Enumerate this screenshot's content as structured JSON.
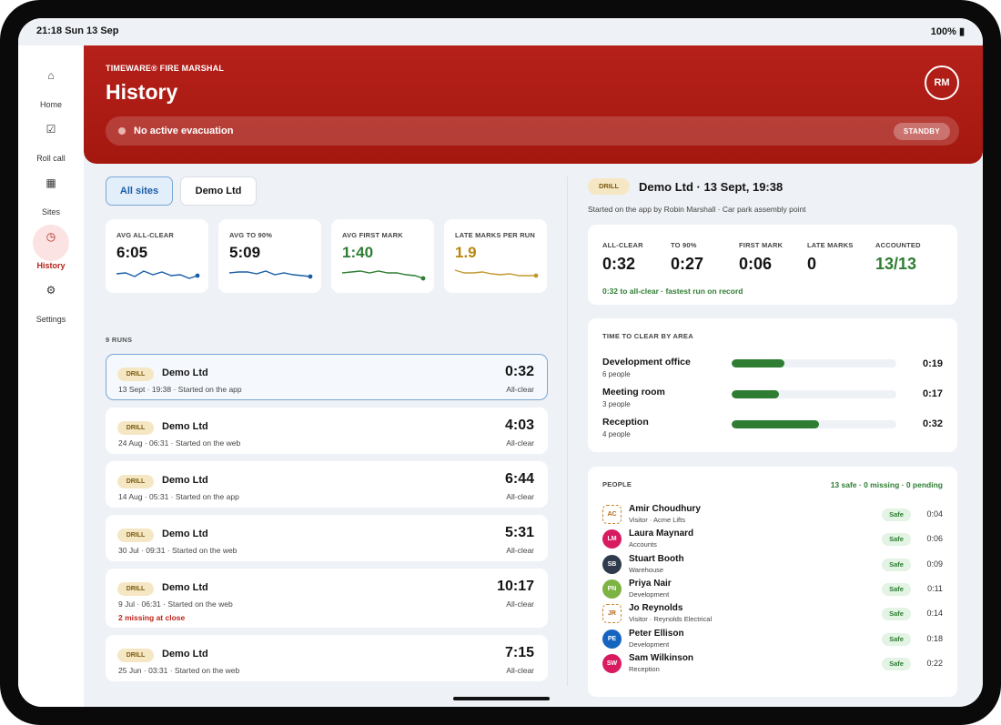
{
  "status": {
    "time": "21:18  Sun 13 Sep",
    "battery": "100% ▮"
  },
  "nav": [
    {
      "label": "Home",
      "icon": "home-icon",
      "glyph": "⌂"
    },
    {
      "label": "Roll call",
      "icon": "checklist-icon",
      "glyph": "☑"
    },
    {
      "label": "Sites",
      "icon": "building-icon",
      "glyph": "▦"
    },
    {
      "label": "History",
      "icon": "clock-icon",
      "glyph": "◷"
    },
    {
      "label": "Settings",
      "icon": "gear-icon",
      "glyph": "⚙"
    }
  ],
  "header": {
    "brand": "TIMEWARE® FIRE MARSHAL",
    "title": "History",
    "avatar": "RM",
    "evac_text": "No active evacuation",
    "evac_badge": "STANDBY"
  },
  "filters": {
    "all": "All sites",
    "site": "Demo Ltd"
  },
  "stats": [
    {
      "label": "AVG ALL-CLEAR",
      "value": "6:05",
      "color": "#141414",
      "spark": "#1a5ea8"
    },
    {
      "label": "AVG TO 90%",
      "value": "5:09",
      "color": "#141414",
      "spark": "#1a5ea8"
    },
    {
      "label": "AVG FIRST MARK",
      "value": "1:40",
      "color": "#2e7d32",
      "spark": "#2e7d32"
    },
    {
      "label": "LATE MARKS PER RUN",
      "value": "1.9",
      "color": "#b8860b",
      "spark": "#c09a2e"
    }
  ],
  "runs_count": "9 RUNS",
  "runs": [
    {
      "badge": "DRILL",
      "name": "Demo Ltd",
      "sub": "13 Sept · 19:38 · Started on the app",
      "time": "0:32",
      "time_label": "All-clear",
      "warn": ""
    },
    {
      "badge": "DRILL",
      "name": "Demo Ltd",
      "sub": "24 Aug · 06:31 · Started on the web",
      "time": "4:03",
      "time_label": "All-clear",
      "warn": ""
    },
    {
      "badge": "DRILL",
      "name": "Demo Ltd",
      "sub": "14 Aug · 05:31 · Started on the app",
      "time": "6:44",
      "time_label": "All-clear",
      "warn": ""
    },
    {
      "badge": "DRILL",
      "name": "Demo Ltd",
      "sub": "30 Jul · 09:31 · Started on the web",
      "time": "5:31",
      "time_label": "All-clear",
      "warn": ""
    },
    {
      "badge": "DRILL",
      "name": "Demo Ltd",
      "sub": "9 Jul · 06:31 · Started on the web",
      "time": "10:17",
      "time_label": "All-clear",
      "warn": "2 missing at close"
    },
    {
      "badge": "DRILL",
      "name": "Demo Ltd",
      "sub": "25 Jun · 03:31 · Started on the web",
      "time": "7:15",
      "time_label": "All-clear",
      "warn": ""
    }
  ],
  "detail": {
    "badge": "DRILL",
    "title": "Demo Ltd · 13 Sept, 19:38",
    "subtitle": "Started on the app by Robin Marshall · Car park assembly point",
    "metrics": [
      {
        "label": "ALL-CLEAR",
        "value": "0:32",
        "color": "#141414"
      },
      {
        "label": "TO 90%",
        "value": "0:27",
        "color": "#141414"
      },
      {
        "label": "FIRST MARK",
        "value": "0:06",
        "color": "#141414"
      },
      {
        "label": "LATE MARKS",
        "value": "0",
        "color": "#141414"
      },
      {
        "label": "ACCOUNTED",
        "value": "13/13",
        "color": "#2e7d32"
      }
    ],
    "fastest": "0:32 to all-clear · fastest run on record",
    "areas_title": "TIME TO CLEAR BY AREA",
    "areas": [
      {
        "name": "Development office",
        "people": "6 people",
        "time": "0:19",
        "fraction": 0.32
      },
      {
        "name": "Meeting room",
        "people": "3 people",
        "time": "0:17",
        "fraction": 0.29
      },
      {
        "name": "Reception",
        "people": "4 people",
        "time": "0:32",
        "fraction": 0.53
      }
    ],
    "people_title": "PEOPLE",
    "people_summary": "13 safe · 0 missing · 0 pending",
    "people": [
      {
        "initials": "AC",
        "name": "Amir Choudhury",
        "role": "Visitor · Acme Lifts",
        "status": "Safe",
        "time": "0:04",
        "visitor": true,
        "color": "#ffffff"
      },
      {
        "initials": "LM",
        "name": "Laura Maynard",
        "role": "Accounts",
        "status": "Safe",
        "time": "0:06",
        "visitor": false,
        "color": "#d81b60"
      },
      {
        "initials": "SB",
        "name": "Stuart Booth",
        "role": "Warehouse",
        "status": "Safe",
        "time": "0:09",
        "visitor": false,
        "color": "#2f3b4c"
      },
      {
        "initials": "PN",
        "name": "Priya Nair",
        "role": "Development",
        "status": "Safe",
        "time": "0:11",
        "visitor": false,
        "color": "#7cb342"
      },
      {
        "initials": "JR",
        "name": "Jo Reynolds",
        "role": "Visitor · Reynolds Electrical",
        "status": "Safe",
        "time": "0:14",
        "visitor": true,
        "color": "#ffffff"
      },
      {
        "initials": "PE",
        "name": "Peter Ellison",
        "role": "Development",
        "status": "Safe",
        "time": "0:18",
        "visitor": false,
        "color": "#1565c0"
      },
      {
        "initials": "SW",
        "name": "Sam Wilkinson",
        "role": "Reception",
        "status": "Safe",
        "time": "0:22",
        "visitor": false,
        "color": "#d81b60"
      }
    ]
  }
}
